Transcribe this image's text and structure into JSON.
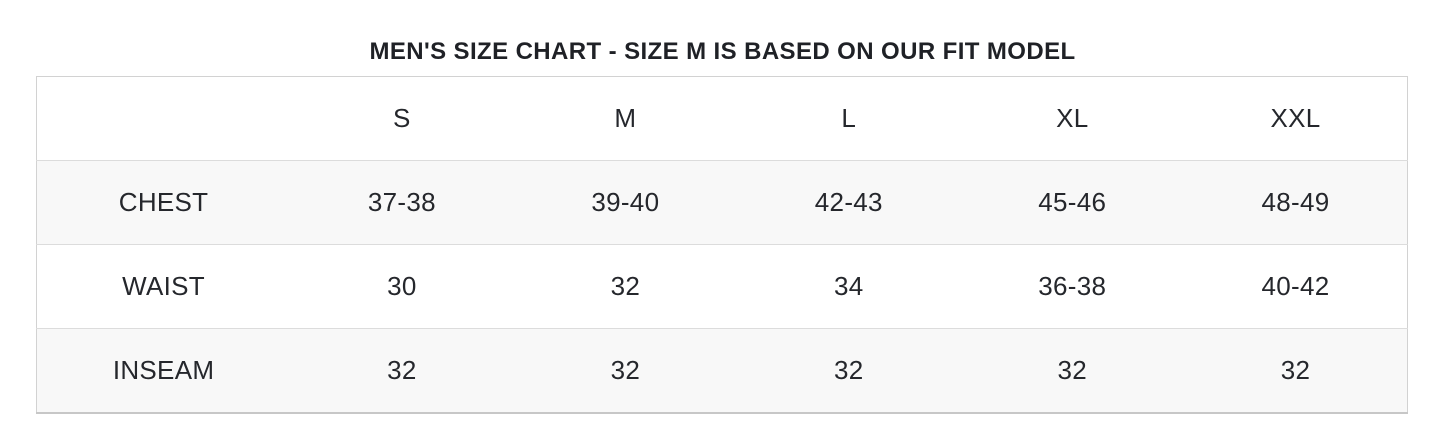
{
  "title": "MEN'S SIZE CHART - SIZE M IS BASED ON OUR FIT MODEL",
  "chart_data": {
    "type": "table",
    "title": "MEN'S SIZE CHART - SIZE M IS BASED ON OUR FIT MODEL",
    "columns": [
      "",
      "S",
      "M",
      "L",
      "XL",
      "XXL"
    ],
    "rows": [
      [
        "CHEST",
        "37-38",
        "39-40",
        "42-43",
        "45-46",
        "48-49"
      ],
      [
        "WAIST",
        "30",
        "32",
        "34",
        "36-38",
        "40-42"
      ],
      [
        "INSEAM",
        "32",
        "32",
        "32",
        "32",
        "32"
      ]
    ]
  },
  "colors": {
    "title_text": "#1f2126",
    "cell_text": "#25272c",
    "table_border": "#d2d2d2",
    "row_divider": "#dcdcdc",
    "row_alt_background": "#f8f8f8",
    "page_background": "#ffffff"
  }
}
